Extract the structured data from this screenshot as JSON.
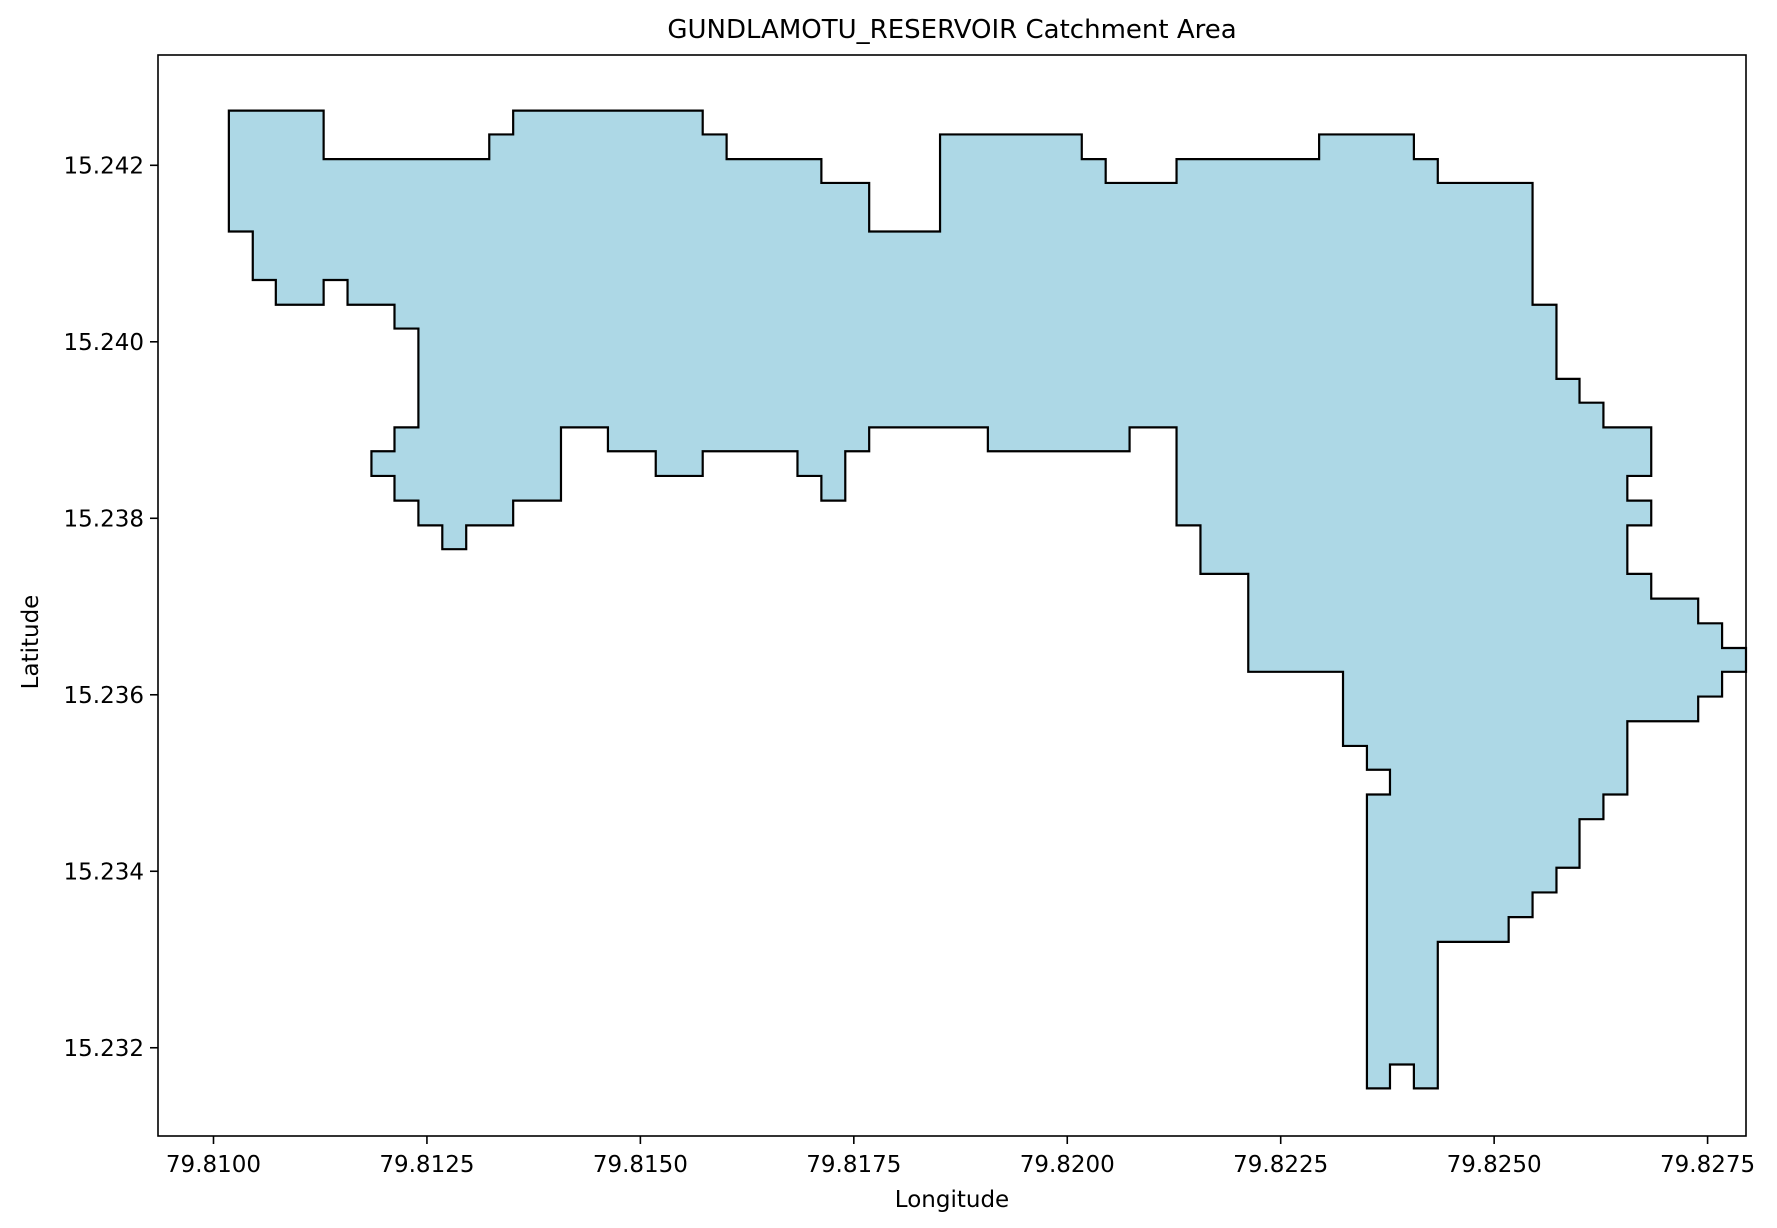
{
  "chart_data": {
    "type": "area",
    "title": "GUNDLAMOTU_RESERVOIR Catchment Area",
    "xlabel": "Longitude",
    "ylabel": "Latitude",
    "xlim": [
      79.80935,
      79.82795
    ],
    "ylim": [
      15.231,
      15.24325
    ],
    "xticks": [
      79.81,
      79.8125,
      79.815,
      79.8175,
      79.82,
      79.8225,
      79.825,
      79.8275
    ],
    "xtick_labels": [
      "79.8100",
      "79.8125",
      "79.8150",
      "79.8175",
      "79.8200",
      "79.8225",
      "79.8250",
      "79.8275"
    ],
    "yticks": [
      15.232,
      15.234,
      15.236,
      15.238,
      15.24,
      15.242
    ],
    "ytick_labels": [
      "15.232",
      "15.234",
      "15.236",
      "15.238",
      "15.240",
      "15.242"
    ],
    "grid": false,
    "fill_color": "#add8e6",
    "edge_color": "#000000",
    "polygon": [
      [
        79.81018,
        15.24262
      ],
      [
        79.81129,
        15.24262
      ],
      [
        79.81129,
        15.24207
      ],
      [
        79.81323,
        15.24207
      ],
      [
        79.81323,
        15.24235
      ],
      [
        79.81351,
        15.24235
      ],
      [
        79.81351,
        15.24262
      ],
      [
        79.81573,
        15.24262
      ],
      [
        79.81573,
        15.24235
      ],
      [
        79.81601,
        15.24235
      ],
      [
        79.81601,
        15.24207
      ],
      [
        79.81712,
        15.24207
      ],
      [
        79.81712,
        15.2418
      ],
      [
        79.81768,
        15.2418
      ],
      [
        79.81768,
        15.24125
      ],
      [
        79.81851,
        15.24125
      ],
      [
        79.81851,
        15.24235
      ],
      [
        79.82017,
        15.24235
      ],
      [
        79.82017,
        15.24207
      ],
      [
        79.82045,
        15.24207
      ],
      [
        79.82045,
        15.2418
      ],
      [
        79.82128,
        15.2418
      ],
      [
        79.82128,
        15.24207
      ],
      [
        79.82295,
        15.24207
      ],
      [
        79.82295,
        15.24235
      ],
      [
        79.82406,
        15.24235
      ],
      [
        79.82406,
        15.24207
      ],
      [
        79.82434,
        15.24207
      ],
      [
        79.82434,
        15.2418
      ],
      [
        79.82545,
        15.2418
      ],
      [
        79.82545,
        15.24042
      ],
      [
        79.82573,
        15.24042
      ],
      [
        79.82573,
        15.23958
      ],
      [
        79.826,
        15.23958
      ],
      [
        79.826,
        15.23931
      ],
      [
        79.82628,
        15.23931
      ],
      [
        79.82628,
        15.23903
      ],
      [
        79.82684,
        15.23903
      ],
      [
        79.82684,
        15.23848
      ],
      [
        79.82656,
        15.23848
      ],
      [
        79.82656,
        15.2382
      ],
      [
        79.82684,
        15.2382
      ],
      [
        79.82684,
        15.23792
      ],
      [
        79.82656,
        15.23792
      ],
      [
        79.82656,
        15.23737
      ],
      [
        79.82684,
        15.23737
      ],
      [
        79.82684,
        15.23709
      ],
      [
        79.82739,
        15.23709
      ],
      [
        79.82739,
        15.23681
      ],
      [
        79.82767,
        15.23681
      ],
      [
        79.82767,
        15.23653
      ],
      [
        79.82795,
        15.23653
      ],
      [
        79.82795,
        15.23626
      ],
      [
        79.82767,
        15.23626
      ],
      [
        79.82767,
        15.23598
      ],
      [
        79.82739,
        15.23598
      ],
      [
        79.82739,
        15.2357
      ],
      [
        79.82656,
        15.2357
      ],
      [
        79.82656,
        15.23487
      ],
      [
        79.82628,
        15.23487
      ],
      [
        79.82628,
        15.23459
      ],
      [
        79.826,
        15.23459
      ],
      [
        79.826,
        15.23404
      ],
      [
        79.82573,
        15.23404
      ],
      [
        79.82573,
        15.23376
      ],
      [
        79.82545,
        15.23376
      ],
      [
        79.82545,
        15.23348
      ],
      [
        79.82517,
        15.23348
      ],
      [
        79.82517,
        15.2332
      ],
      [
        79.82434,
        15.2332
      ],
      [
        79.82434,
        15.23154
      ],
      [
        79.82406,
        15.23154
      ],
      [
        79.82406,
        15.23181
      ],
      [
        79.82378,
        15.23181
      ],
      [
        79.82378,
        15.23154
      ],
      [
        79.82351,
        15.23154
      ],
      [
        79.82351,
        15.23487
      ],
      [
        79.82378,
        15.23487
      ],
      [
        79.82378,
        15.23515
      ],
      [
        79.82351,
        15.23515
      ],
      [
        79.82351,
        15.23542
      ],
      [
        79.82323,
        15.23542
      ],
      [
        79.82323,
        15.23626
      ],
      [
        79.82212,
        15.23626
      ],
      [
        79.82212,
        15.23737
      ],
      [
        79.82156,
        15.23737
      ],
      [
        79.82156,
        15.23792
      ],
      [
        79.82128,
        15.23792
      ],
      [
        79.82128,
        15.23903
      ],
      [
        79.82073,
        15.23903
      ],
      [
        79.82073,
        15.23876
      ],
      [
        79.81907,
        15.23876
      ],
      [
        79.81907,
        15.23903
      ],
      [
        79.81768,
        15.23903
      ],
      [
        79.81768,
        15.23876
      ],
      [
        79.8174,
        15.23876
      ],
      [
        79.8174,
        15.2382
      ],
      [
        79.81712,
        15.2382
      ],
      [
        79.81712,
        15.23848
      ],
      [
        79.81684,
        15.23848
      ],
      [
        79.81684,
        15.23876
      ],
      [
        79.81573,
        15.23876
      ],
      [
        79.81573,
        15.23848
      ],
      [
        79.81518,
        15.23848
      ],
      [
        79.81518,
        15.23876
      ],
      [
        79.81462,
        15.23876
      ],
      [
        79.81462,
        15.23903
      ],
      [
        79.81407,
        15.23903
      ],
      [
        79.81407,
        15.2382
      ],
      [
        79.81351,
        15.2382
      ],
      [
        79.81351,
        15.23792
      ],
      [
        79.81296,
        15.23792
      ],
      [
        79.81296,
        15.23765
      ],
      [
        79.81268,
        15.23765
      ],
      [
        79.81268,
        15.23792
      ],
      [
        79.8124,
        15.23792
      ],
      [
        79.8124,
        15.2382
      ],
      [
        79.81212,
        15.2382
      ],
      [
        79.81212,
        15.23848
      ],
      [
        79.81185,
        15.23848
      ],
      [
        79.81185,
        15.23876
      ],
      [
        79.81212,
        15.23876
      ],
      [
        79.81212,
        15.23903
      ],
      [
        79.8124,
        15.23903
      ],
      [
        79.8124,
        15.24015
      ],
      [
        79.81212,
        15.24015
      ],
      [
        79.81212,
        15.24042
      ],
      [
        79.81157,
        15.24042
      ],
      [
        79.81157,
        15.2407
      ],
      [
        79.81129,
        15.2407
      ],
      [
        79.81129,
        15.24042
      ],
      [
        79.81073,
        15.24042
      ],
      [
        79.81073,
        15.2407
      ],
      [
        79.81046,
        15.2407
      ],
      [
        79.81046,
        15.24125
      ],
      [
        79.81018,
        15.24125
      ]
    ]
  }
}
